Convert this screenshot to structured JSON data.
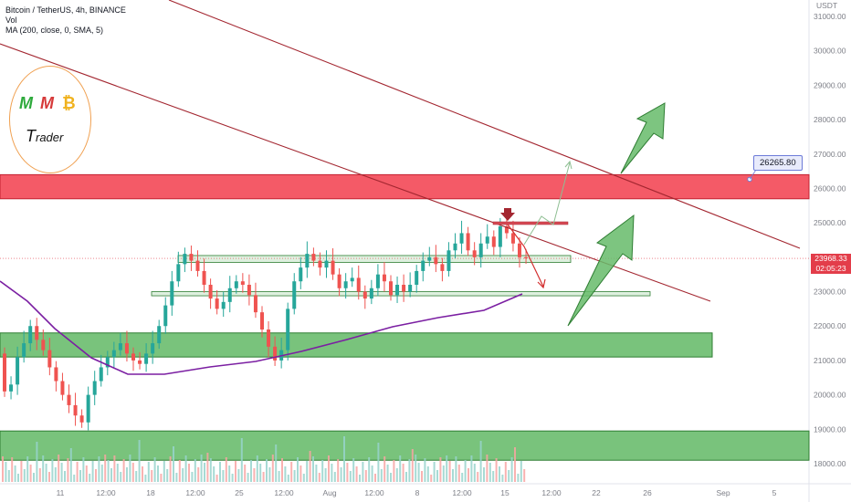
{
  "legend": {
    "symbol": "Bitcoin / TetherUS, 4h, BINANCE",
    "volume": "Vol",
    "ma": "MA (200, close, 0, SMA, 5)"
  },
  "logo": {
    "letter1": "M",
    "letter2": "M",
    "letter3": "₿",
    "word_big": "T",
    "word_rest": "rader"
  },
  "price_axis": {
    "currency": "USDT",
    "ticks": [
      "31000.00",
      "30000.00",
      "29000.00",
      "28000.00",
      "27000.00",
      "26000.00",
      "25000.00",
      "24000.00",
      "23000.00",
      "22000.00",
      "21000.00",
      "20000.00",
      "19000.00",
      "18000.00"
    ],
    "current_price": "23968.33",
    "countdown": "02:05:23"
  },
  "callout": {
    "label": "26265.80"
  },
  "time_axis": {
    "ticks": [
      "11",
      "12:00",
      "18",
      "12:00",
      "25",
      "12:00",
      "Aug",
      "12:00",
      "8",
      "12:00",
      "15",
      "12:00",
      "22",
      "26",
      "Sep",
      "5"
    ]
  },
  "colors": {
    "up": "#26a69a",
    "down": "#ef5350",
    "ma": "#7b1fa2",
    "resistance_zone": "#f23645",
    "support_zone": "#4caf50",
    "trendline": "#a32630"
  },
  "chart_data": {
    "type": "candlestick",
    "ylim": [
      17600,
      31400
    ],
    "candles_close": [
      20100,
      20300,
      21100,
      21500,
      22000,
      21600,
      21300,
      20800,
      20400,
      20000,
      19700,
      19400,
      19200,
      20000,
      20400,
      20800,
      21100,
      21300,
      21500,
      21200,
      21000,
      20900,
      21200,
      21500,
      22000,
      22600,
      23300,
      23800,
      24100,
      23900,
      23600,
      23200,
      22800,
      22500,
      22700,
      23100,
      23300,
      23200,
      22900,
      22400,
      21900,
      21400,
      21000,
      21300,
      22500,
      23300,
      23700,
      24100,
      23900,
      23700,
      23900,
      23500,
      23100,
      23300,
      23400,
      23000,
      22800,
      23100,
      23500,
      23300,
      22900,
      23200,
      23000,
      23200,
      23600,
      23900,
      24000,
      23800,
      23600,
      24200,
      24400,
      24700,
      24200,
      24000,
      24400,
      24600,
      24300,
      24900,
      24700,
      24400,
      24000,
      23968
    ],
    "zones": [
      {
        "kind": "resistance",
        "low": 25700,
        "high": 26400
      },
      {
        "kind": "support",
        "low": 21100,
        "high": 21800
      },
      {
        "kind": "support",
        "low": 18100,
        "high": 18950
      }
    ],
    "callout_price": 26265.8
  }
}
